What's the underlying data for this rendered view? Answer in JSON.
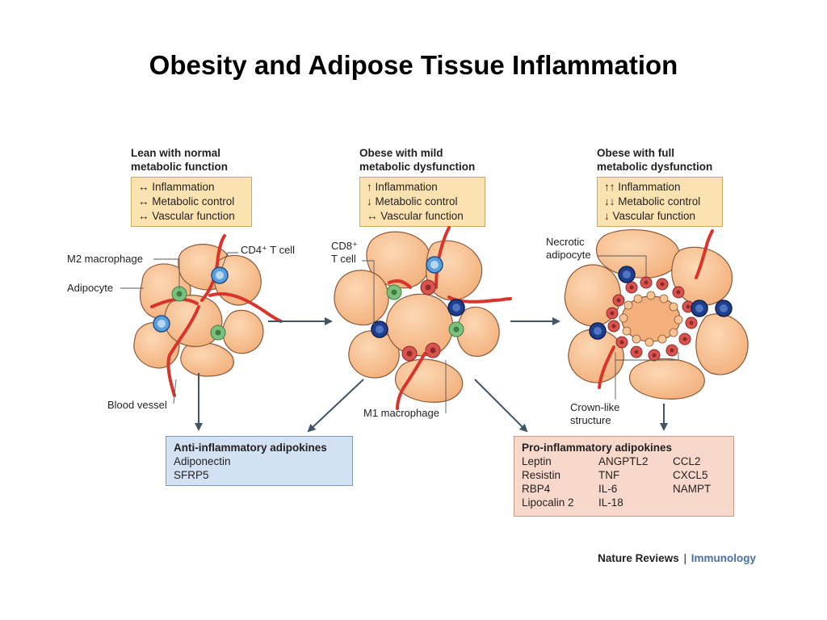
{
  "title": "Obesity and Adipose Tissue Inflammation",
  "phases": [
    {
      "heading": [
        "Lean with normal",
        "metabolic function"
      ],
      "effects": [
        "↔ Inflammation",
        "↔ Metabolic control",
        "↔ Vascular function"
      ]
    },
    {
      "heading": [
        "Obese with mild",
        "metabolic dysfunction"
      ],
      "effects": [
        "↑ Inflammation",
        "↓ Metabolic control",
        "↔ Vascular function"
      ]
    },
    {
      "heading": [
        "Obese with full",
        "metabolic dysfunction"
      ],
      "effects": [
        "↑↑ Inflammation",
        "↓↓ Metabolic control",
        "↓  Vascular function"
      ]
    }
  ],
  "labels": {
    "m2_macrophage": "M2 macrophage",
    "cd4_t_cell": "CD4⁺ T cell",
    "adipocyte": "Adipocyte",
    "blood_vessel": "Blood vessel",
    "cd8_line1": "CD8⁺",
    "cd8_line2": "T cell",
    "m1_macrophage": "M1 macrophage",
    "necrotic_line1": "Necrotic",
    "necrotic_line2": "adipocyte",
    "crown_line1": "Crown-like",
    "crown_line2": "structure"
  },
  "anti_inflammatory": {
    "title": "Anti-inflammatory adipokines",
    "items": [
      "Adiponectin",
      "SFRP5"
    ]
  },
  "pro_inflammatory": {
    "title": "Pro-inflammatory adipokines",
    "items": [
      "Leptin",
      "ANGPTL2",
      "CCL2",
      "Resistin",
      "TNF",
      "CXCL5",
      "RBP4",
      "IL-6",
      "NAMPT",
      "Lipocalin 2",
      "IL-18",
      ""
    ]
  },
  "credit": {
    "publisher": "Nature Reviews",
    "separator": "|",
    "journal": "Immunology"
  },
  "colors": {
    "adipocyte_fill": "#f8c292",
    "adipocyte_stroke": "#8a5a3a",
    "vessel": "#d9342b",
    "t_cell": "#5aa0dc",
    "cd8_t_cell": "#1f3f8c",
    "m2_macrophage": "#7cc07f",
    "m1_macrophage": "#d9534f",
    "effect_box": "#fbe3b1",
    "anti_box": "#d3e2f3",
    "pro_box": "#f7d8cb",
    "arrow": "#3f5566"
  }
}
